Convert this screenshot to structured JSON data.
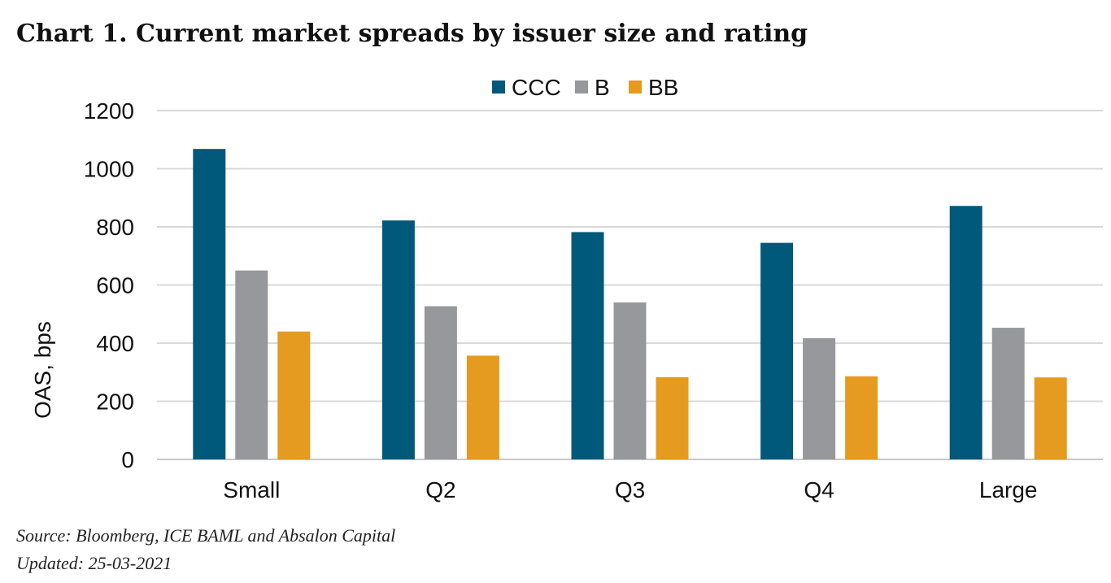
{
  "header": {
    "title": "Chart 1. Current market spreads by issuer size and rating"
  },
  "footer": {
    "source": "Source: Bloomberg, ICE BAML and Absalon Capital",
    "updated": "Updated: 25-03-2021"
  },
  "chart_data": {
    "type": "bar",
    "title": "Chart 1. Current market spreads by issuer size and rating",
    "xlabel": "",
    "ylabel": "OAS, bps",
    "categories": [
      "Small",
      "Q2",
      "Q3",
      "Q4",
      "Large"
    ],
    "series": [
      {
        "name": "CCC",
        "color": "#00587a",
        "values": [
          1068,
          822,
          782,
          745,
          872
        ]
      },
      {
        "name": "B",
        "color": "#97989c",
        "values": [
          650,
          527,
          540,
          417,
          453
        ]
      },
      {
        "name": "BB",
        "color": "#e59a20",
        "values": [
          440,
          357,
          283,
          286,
          282
        ]
      }
    ],
    "ylim": [
      0,
      1200
    ],
    "yticks": [
      0,
      200,
      400,
      600,
      800,
      1000,
      1200
    ],
    "grid": true,
    "legend": "top-center"
  }
}
